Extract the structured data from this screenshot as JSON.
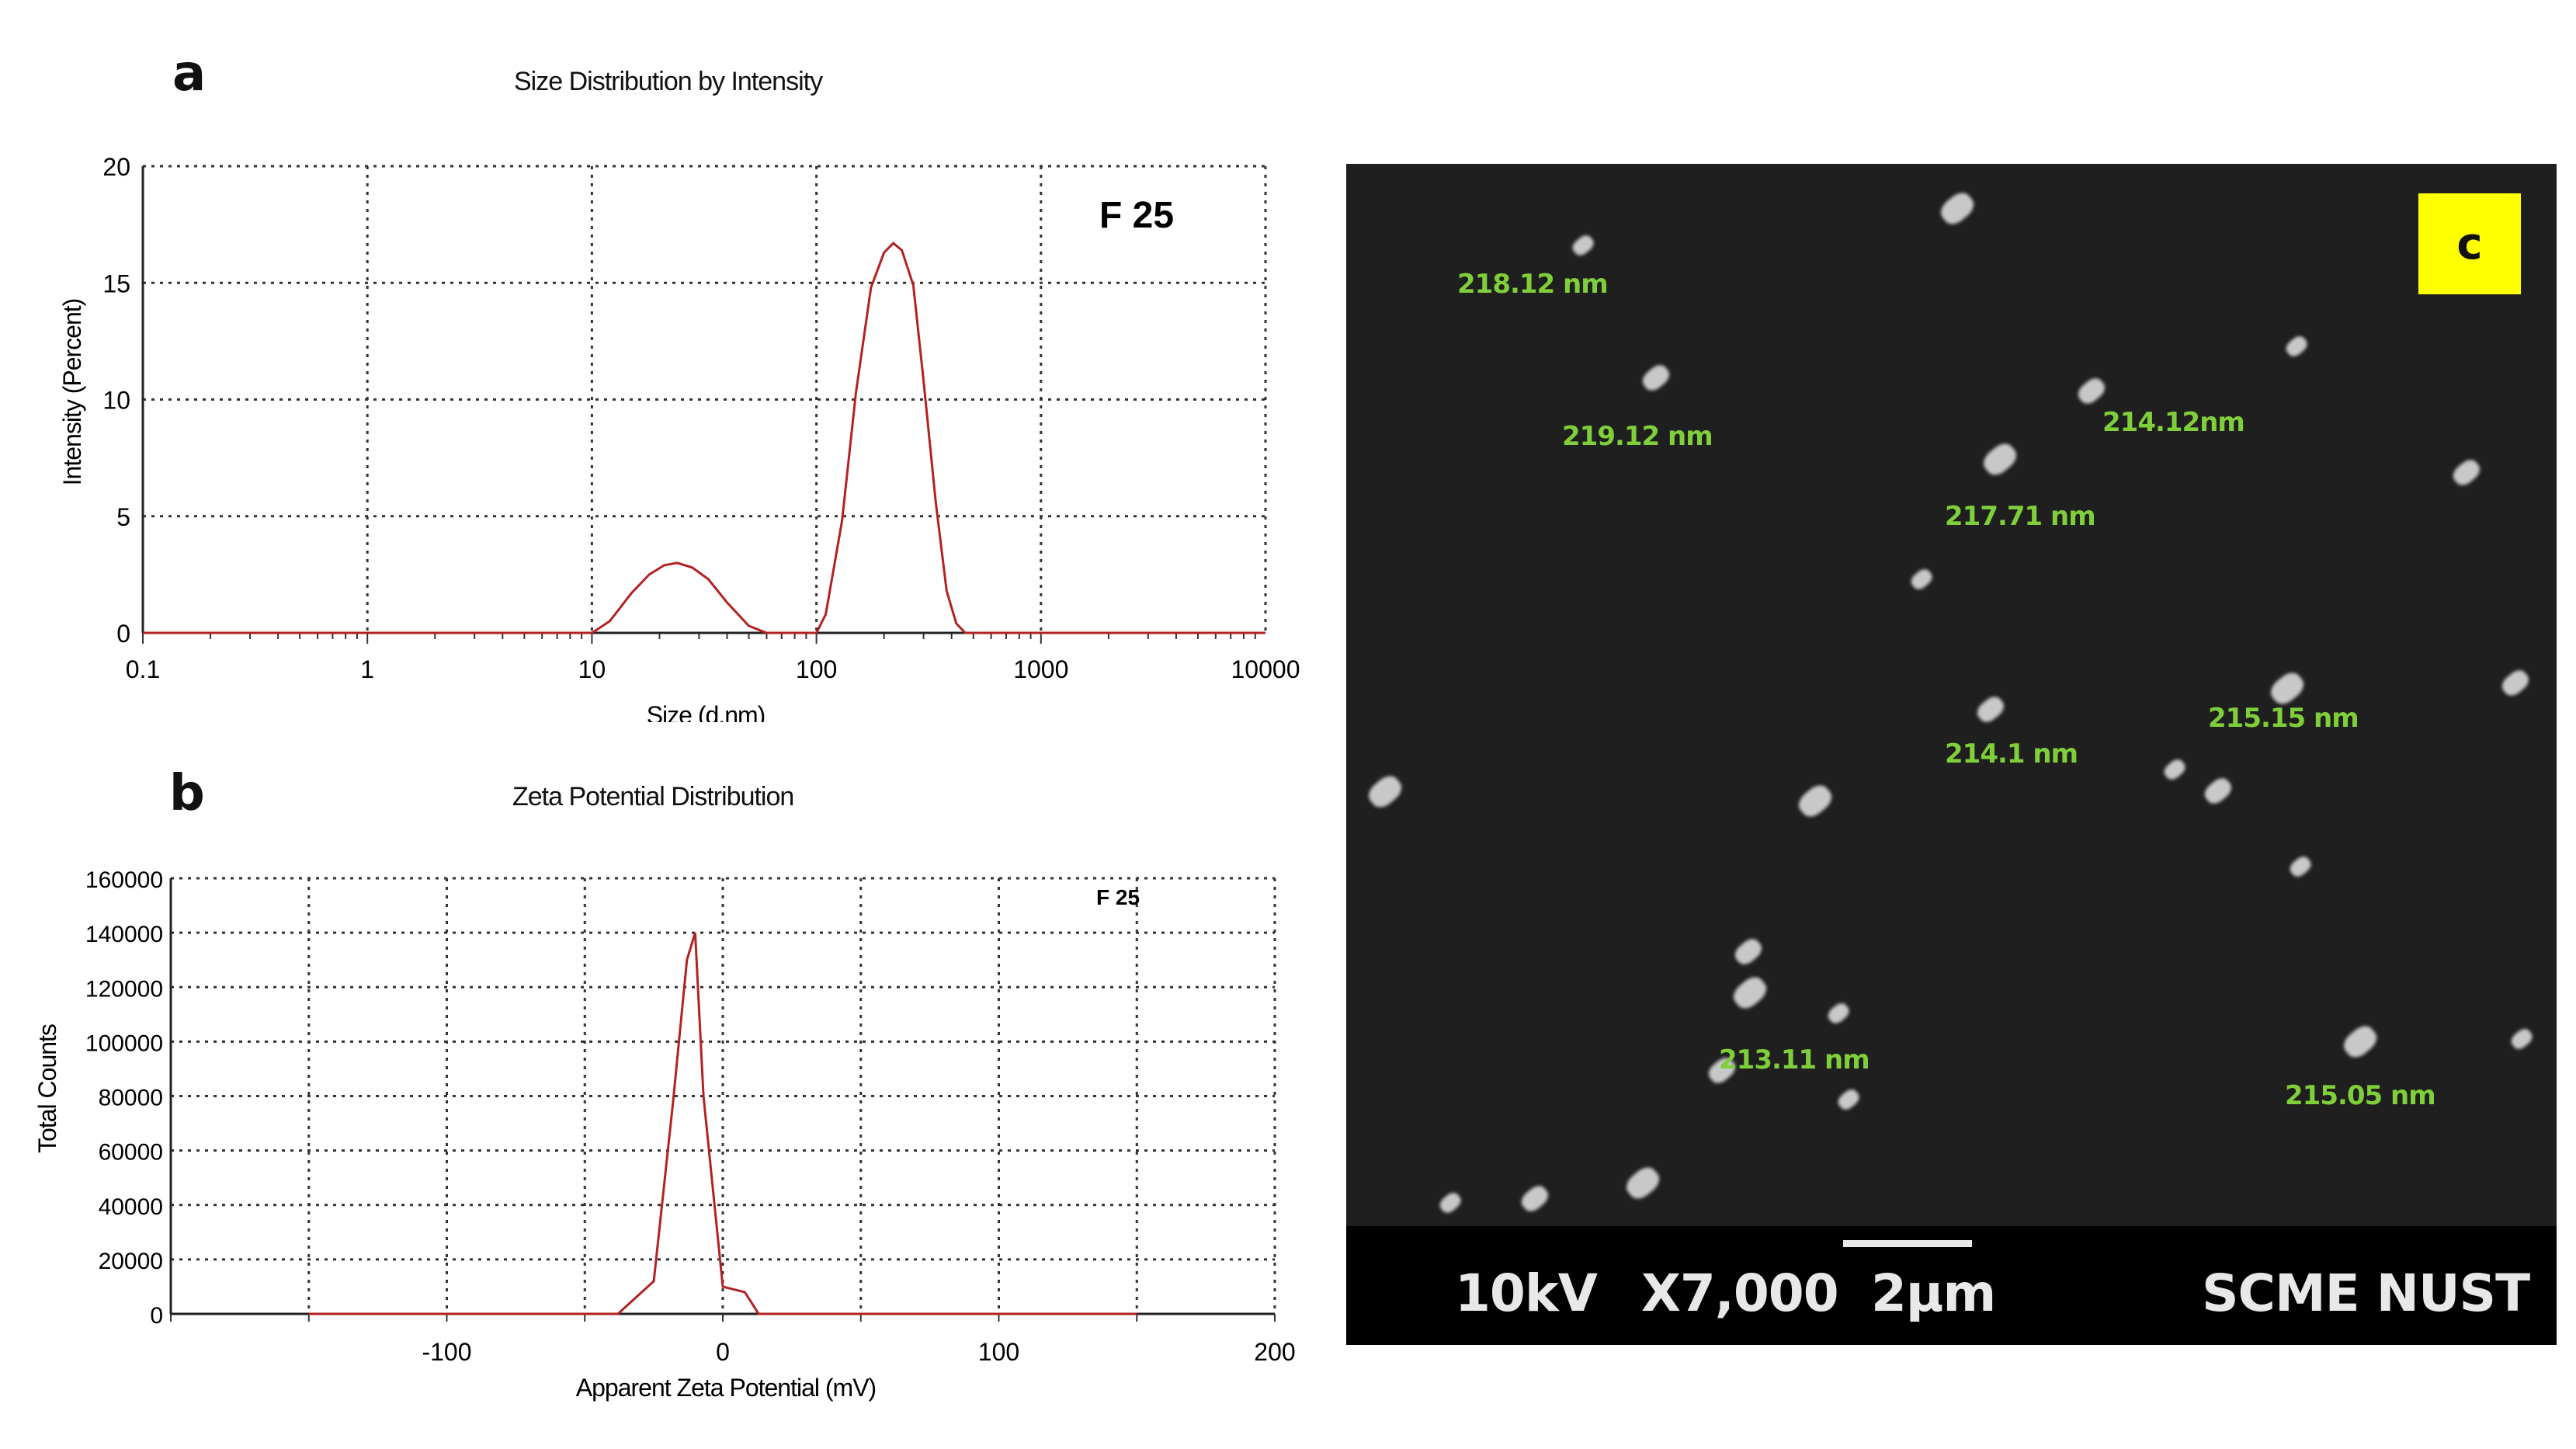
{
  "colors": {
    "curve": "#b22222",
    "sem_label": "#7fcf3a",
    "badge": "#ffff00"
  },
  "panel_a": {
    "letter": "a"
  },
  "panel_b": {
    "letter": "b"
  },
  "panel_c": {
    "letter": "c",
    "labels": [
      "218.12 nm",
      "219.12 nm",
      "214.12nm",
      "217.71 nm",
      "215.15 nm",
      "214.1 nm",
      "213.11 nm",
      "215.05 nm"
    ],
    "info": {
      "voltage": "10kV",
      "magnification": "X7,000",
      "scale": "2µm",
      "institution": "SCME  NUST"
    }
  },
  "chart_data": [
    {
      "type": "line",
      "title": "Size Distribution by Intensity",
      "xlabel": "Size (d.nm)",
      "ylabel": "Intensity (Percent)",
      "xscale": "log",
      "xlim": [
        0.1,
        10000
      ],
      "ylim": [
        0,
        20
      ],
      "xticks": [
        "0.1",
        "1",
        "10",
        "100",
        "1000",
        "10000"
      ],
      "yticks": [
        "0",
        "5",
        "10",
        "15",
        "20"
      ],
      "grid": true,
      "annotation": "F 25",
      "series": [
        {
          "x": [
            0.1,
            10,
            12,
            15,
            18,
            21,
            24,
            28,
            33,
            40,
            50,
            60,
            100,
            110,
            130,
            150,
            175,
            200,
            220,
            240,
            270,
            300,
            340,
            380,
            420,
            460,
            10000
          ],
          "y": [
            0,
            0,
            0.5,
            1.7,
            2.5,
            2.9,
            3.0,
            2.8,
            2.3,
            1.3,
            0.3,
            0,
            0,
            0.8,
            4.8,
            10.3,
            14.8,
            16.3,
            16.7,
            16.4,
            14.9,
            10.8,
            5.6,
            1.8,
            0.4,
            0,
            0
          ]
        }
      ]
    },
    {
      "type": "line",
      "title": "Zeta Potential Distribution",
      "xlabel": "Apparent Zeta Potential (mV)",
      "ylabel": "Total Counts",
      "xlim": [
        -200,
        200
      ],
      "ylim": [
        0,
        160000
      ],
      "xticks": [
        "-100",
        "0",
        "100",
        "200"
      ],
      "yticks": [
        "0",
        "20000",
        "40000",
        "60000",
        "80000",
        "100000",
        "120000",
        "140000",
        "160000"
      ],
      "grid": true,
      "annotation": "F 25",
      "series": [
        {
          "x": [
            -150,
            -38,
            -25,
            -18,
            -13,
            -10,
            -7,
            0,
            8,
            13,
            150
          ],
          "y": [
            0,
            0,
            12000,
            78000,
            130000,
            140000,
            80000,
            10000,
            8000,
            0,
            0
          ]
        }
      ]
    }
  ]
}
